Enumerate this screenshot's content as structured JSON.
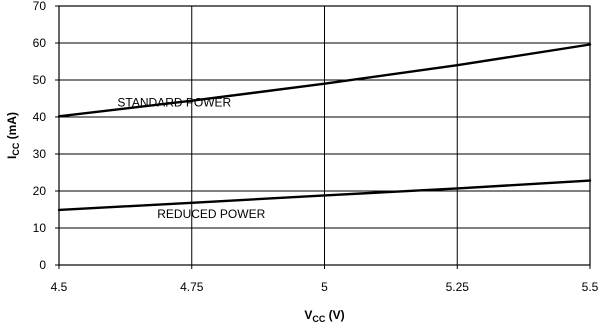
{
  "chart_data": {
    "type": "line",
    "x_ticks": [
      "4.5",
      "4.75",
      "5",
      "5.25",
      "5.5"
    ],
    "y_ticks": [
      "0",
      "10",
      "20",
      "30",
      "40",
      "50",
      "60",
      "70"
    ],
    "xlim": [
      4.5,
      5.5
    ],
    "ylim": [
      0,
      70
    ],
    "grid": true,
    "xlabel": {
      "main": "V",
      "sub": "CC",
      "unit": " (V)"
    },
    "ylabel": {
      "main": "I",
      "sub": "CC",
      "unit": " (mA)"
    },
    "series": [
      {
        "label": "STANDARD POWER",
        "x": [
          4.5,
          4.75,
          5.0,
          5.25,
          5.5
        ],
        "y": [
          40.2,
          44.4,
          49.0,
          54.0,
          59.6
        ],
        "label_pos": [
          4.61,
          42.8
        ]
      },
      {
        "label": "REDUCED POWER",
        "x": [
          4.5,
          4.75,
          5.0,
          5.25,
          5.5
        ],
        "y": [
          14.9,
          16.8,
          18.8,
          20.7,
          22.8
        ],
        "label_pos": [
          4.685,
          12.7
        ]
      }
    ]
  }
}
